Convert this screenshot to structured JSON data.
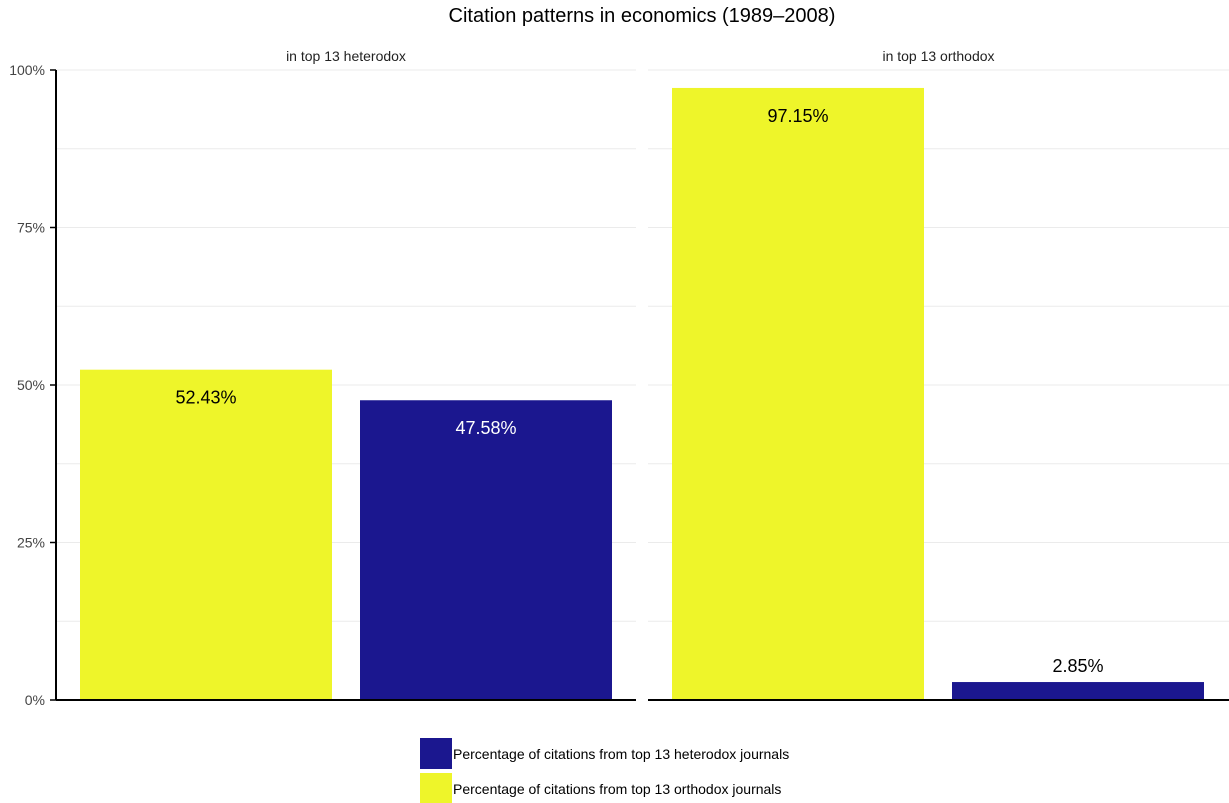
{
  "chart_data": {
    "type": "bar",
    "title": "Citation patterns in economics (1989–2008)",
    "xlabel": "",
    "ylabel": "",
    "ylim": [
      0,
      100
    ],
    "y_ticks": [
      "0%",
      "25%",
      "50%",
      "75%",
      "100%"
    ],
    "y_tick_values": [
      0,
      25,
      50,
      75,
      100
    ],
    "facets": [
      "in top 13 heterodox",
      "in top 13 orthodox"
    ],
    "series": [
      {
        "name": "Percentage of citations from top 13 orthodox journals",
        "color": "#eef52a",
        "label_color": "#000000",
        "values": [
          52.43,
          97.15
        ],
        "labels": [
          "52.43%",
          "97.15%"
        ]
      },
      {
        "name": "Percentage of citations from top 13 heterodox journals",
        "color": "#1b178f",
        "label_color": "#ffffff",
        "values": [
          47.58,
          2.85
        ],
        "labels": [
          "47.58%",
          "2.85%"
        ]
      }
    ],
    "legend": {
      "position": "bottom",
      "order": [
        1,
        0
      ]
    },
    "grid": true
  }
}
